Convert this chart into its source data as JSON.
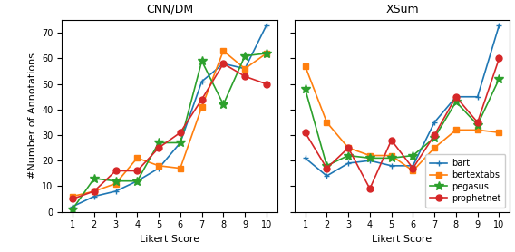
{
  "cnn_x": [
    1,
    2,
    3,
    4,
    5,
    6,
    7,
    8,
    9,
    10
  ],
  "cnn_bart": [
    2,
    6,
    8,
    12,
    17,
    27,
    51,
    58,
    56,
    73
  ],
  "cnn_bertextabs": [
    6,
    8,
    11,
    21,
    18,
    17,
    41,
    63,
    56,
    62
  ],
  "cnn_pegasus": [
    1,
    13,
    12,
    12,
    27,
    27,
    59,
    42,
    61,
    62
  ],
  "cnn_prophetnet": [
    5,
    8,
    16,
    16,
    25,
    31,
    44,
    58,
    53,
    50
  ],
  "xsum_x": [
    1,
    2,
    3,
    4,
    5,
    6,
    7,
    8,
    9,
    10
  ],
  "xsum_bart": [
    21,
    14,
    19,
    20,
    18,
    18,
    35,
    45,
    45,
    73
  ],
  "xsum_bertextabs": [
    57,
    35,
    25,
    22,
    22,
    16,
    25,
    32,
    32,
    31
  ],
  "xsum_pegasus": [
    48,
    18,
    22,
    21,
    21,
    22,
    29,
    43,
    34,
    52
  ],
  "xsum_prophetnet": [
    31,
    17,
    25,
    9,
    28,
    17,
    30,
    45,
    35,
    60
  ],
  "colors": {
    "bart": "#1f77b4",
    "bertextabs": "#ff7f0e",
    "pegasus": "#2ca02c",
    "prophetnet": "#d62728"
  },
  "markers": {
    "bart": "+",
    "bertextabs": "s",
    "pegasus": "*",
    "prophetnet": "o"
  },
  "title_cnn": "CNN/DM",
  "title_xsum": "XSum",
  "xlabel": "Likert Score",
  "ylabel": "#Number of Annotations",
  "ylim": [
    0,
    75
  ],
  "yticks": [
    0,
    10,
    20,
    30,
    40,
    50,
    60,
    70
  ],
  "xticks": [
    1,
    2,
    3,
    4,
    5,
    6,
    7,
    8,
    9,
    10
  ],
  "legend_labels": [
    "bart",
    "bertextabs",
    "pegasus",
    "prophetnet"
  ]
}
